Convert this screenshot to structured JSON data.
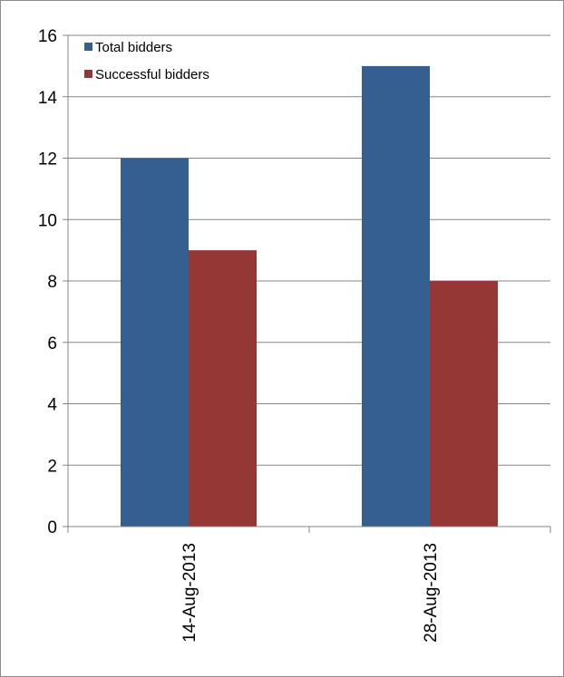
{
  "chart_data": {
    "type": "bar",
    "title": "",
    "xlabel": "",
    "ylabel": "",
    "categories": [
      "14-Aug-2013",
      "28-Aug-2013"
    ],
    "series": [
      {
        "name": "Total bidders",
        "values": [
          12,
          15
        ],
        "color": "#365F91"
      },
      {
        "name": "Successful bidders",
        "values": [
          9,
          8
        ],
        "color": "#953735"
      }
    ],
    "ylim": [
      0,
      16
    ],
    "yticks": [
      0,
      2,
      4,
      6,
      8,
      10,
      12,
      14,
      16
    ],
    "grid": true,
    "legend_position": "top-left"
  }
}
